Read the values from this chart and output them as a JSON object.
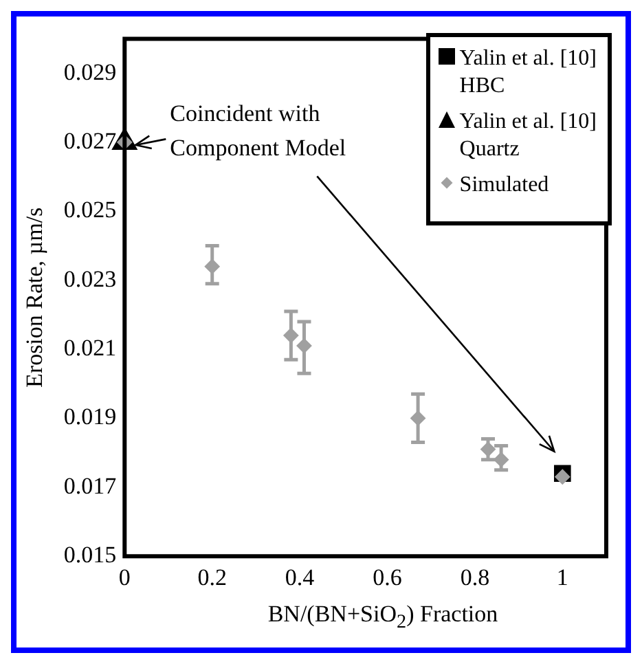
{
  "chart_data": {
    "type": "scatter",
    "xlabel": "BN/(BN+SiO$_{2}$) Fraction",
    "ylabel": "Erosion Rate, µm/s",
    "xlim": [
      0,
      1.1
    ],
    "xticks": [
      0,
      0.2,
      0.4,
      0.6,
      0.8,
      1
    ],
    "ylim": [
      0.015,
      0.03
    ],
    "yticks": [
      0.015,
      0.017,
      0.019,
      0.021,
      0.023,
      0.025,
      0.027,
      0.029
    ],
    "grid": false,
    "legend": "top right",
    "series": [
      {
        "name": "Yalin et al. [10]\nHBC",
        "color": "#000000",
        "marker": "square",
        "x": [
          1
        ],
        "values": [
          0.0174
        ]
      },
      {
        "name": "Yalin et al. [10]\nQuartz",
        "color": "#000000",
        "marker": "triangle",
        "x": [
          0
        ],
        "values": [
          0.027
        ]
      },
      {
        "name": "Simulated",
        "color": "#a0a0a0",
        "marker": "diamond",
        "x": [
          0,
          0.2,
          0.38,
          0.41,
          0.67,
          0.83,
          0.86,
          1
        ],
        "values": [
          0.027,
          0.0234,
          0.0214,
          0.0211,
          0.019,
          0.0181,
          0.0178,
          0.0173
        ],
        "errors": [
          null,
          [
            0.0229,
            0.024
          ],
          [
            0.0207,
            0.0221
          ],
          [
            0.0203,
            0.0218
          ],
          [
            0.0183,
            0.0197
          ],
          [
            0.0178,
            0.0184
          ],
          [
            0.0175,
            0.0182
          ],
          null
        ]
      }
    ],
    "annotations": [
      "Coincident with\nComponent Model"
    ]
  }
}
